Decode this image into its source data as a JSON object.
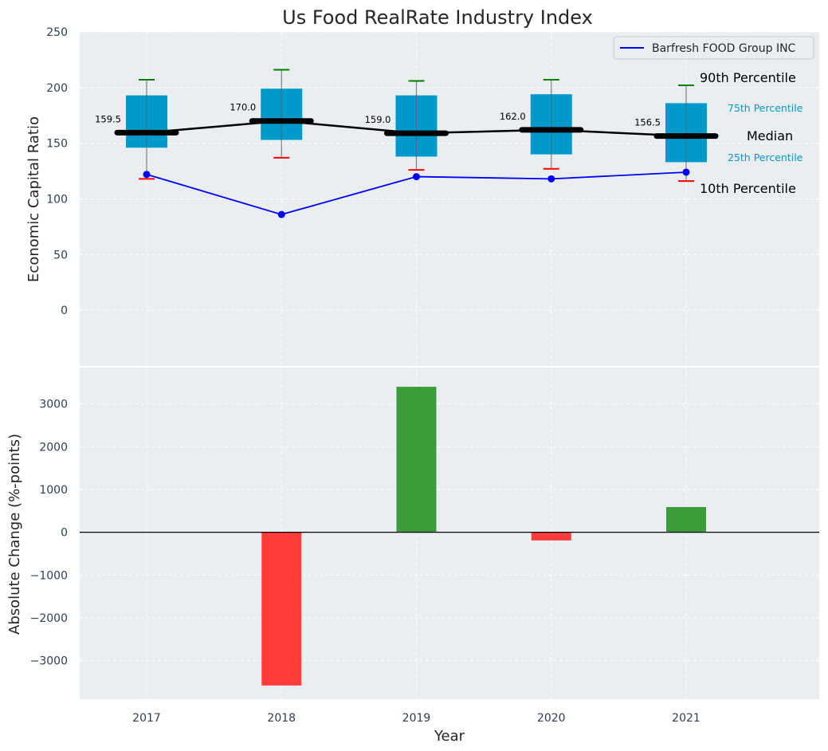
{
  "chart_data": [
    {
      "type": "box",
      "title": "Us Food RealRate Industry Index",
      "ylabel": "Economic Capital Ratio",
      "xlabel": "",
      "ylim": [
        -50,
        250
      ],
      "yticks": [
        "0",
        "50",
        "100",
        "150",
        "200",
        "250"
      ],
      "grid": true,
      "legend_position": "top-right",
      "categories": [
        "2017",
        "2018",
        "2019",
        "2020",
        "2021"
      ],
      "boxes": [
        {
          "p10": 118,
          "p25": 146,
          "median": 159.5,
          "p75": 193,
          "p90": 207
        },
        {
          "p10": 137,
          "p25": 153,
          "median": 170.0,
          "p75": 199,
          "p90": 216
        },
        {
          "p10": 126,
          "p25": 138,
          "median": 159.0,
          "p75": 193,
          "p90": 206
        },
        {
          "p10": 127,
          "p25": 140,
          "median": 162.0,
          "p75": 194,
          "p90": 207
        },
        {
          "p10": 116,
          "p25": 133,
          "median": 156.5,
          "p75": 186,
          "p90": 202
        }
      ],
      "median_labels": [
        "159.5",
        "170.0",
        "159.0",
        "162.0",
        "156.5"
      ],
      "series": [
        {
          "name": "Barfresh FOOD Group INC",
          "values": [
            122,
            86,
            120,
            118,
            124
          ],
          "color": "#0000ff"
        }
      ],
      "annotations": {
        "p90": "90th Percentile",
        "p75": "75th Percentile",
        "median": "Median",
        "p25": "25th Percentile",
        "p10": "10th Percentile"
      },
      "colors": {
        "box": "#0099cc",
        "median": "#000000",
        "p90_cap": "#008000",
        "p10_cap": "#ff0000"
      }
    },
    {
      "type": "bar",
      "ylabel": "Absolute Change (%-points)",
      "xlabel": "Year",
      "ylim": [
        -3900,
        3850
      ],
      "yticks": [
        "−3000",
        "−2000",
        "−1000",
        "0",
        "1000",
        "2000",
        "3000"
      ],
      "categories": [
        "2017",
        "2018",
        "2019",
        "2020",
        "2021"
      ],
      "values": [
        0,
        -3580,
        3400,
        -190,
        590
      ],
      "colors": {
        "positive": "#3a9d3a",
        "negative": "#ff3b3b"
      }
    }
  ]
}
